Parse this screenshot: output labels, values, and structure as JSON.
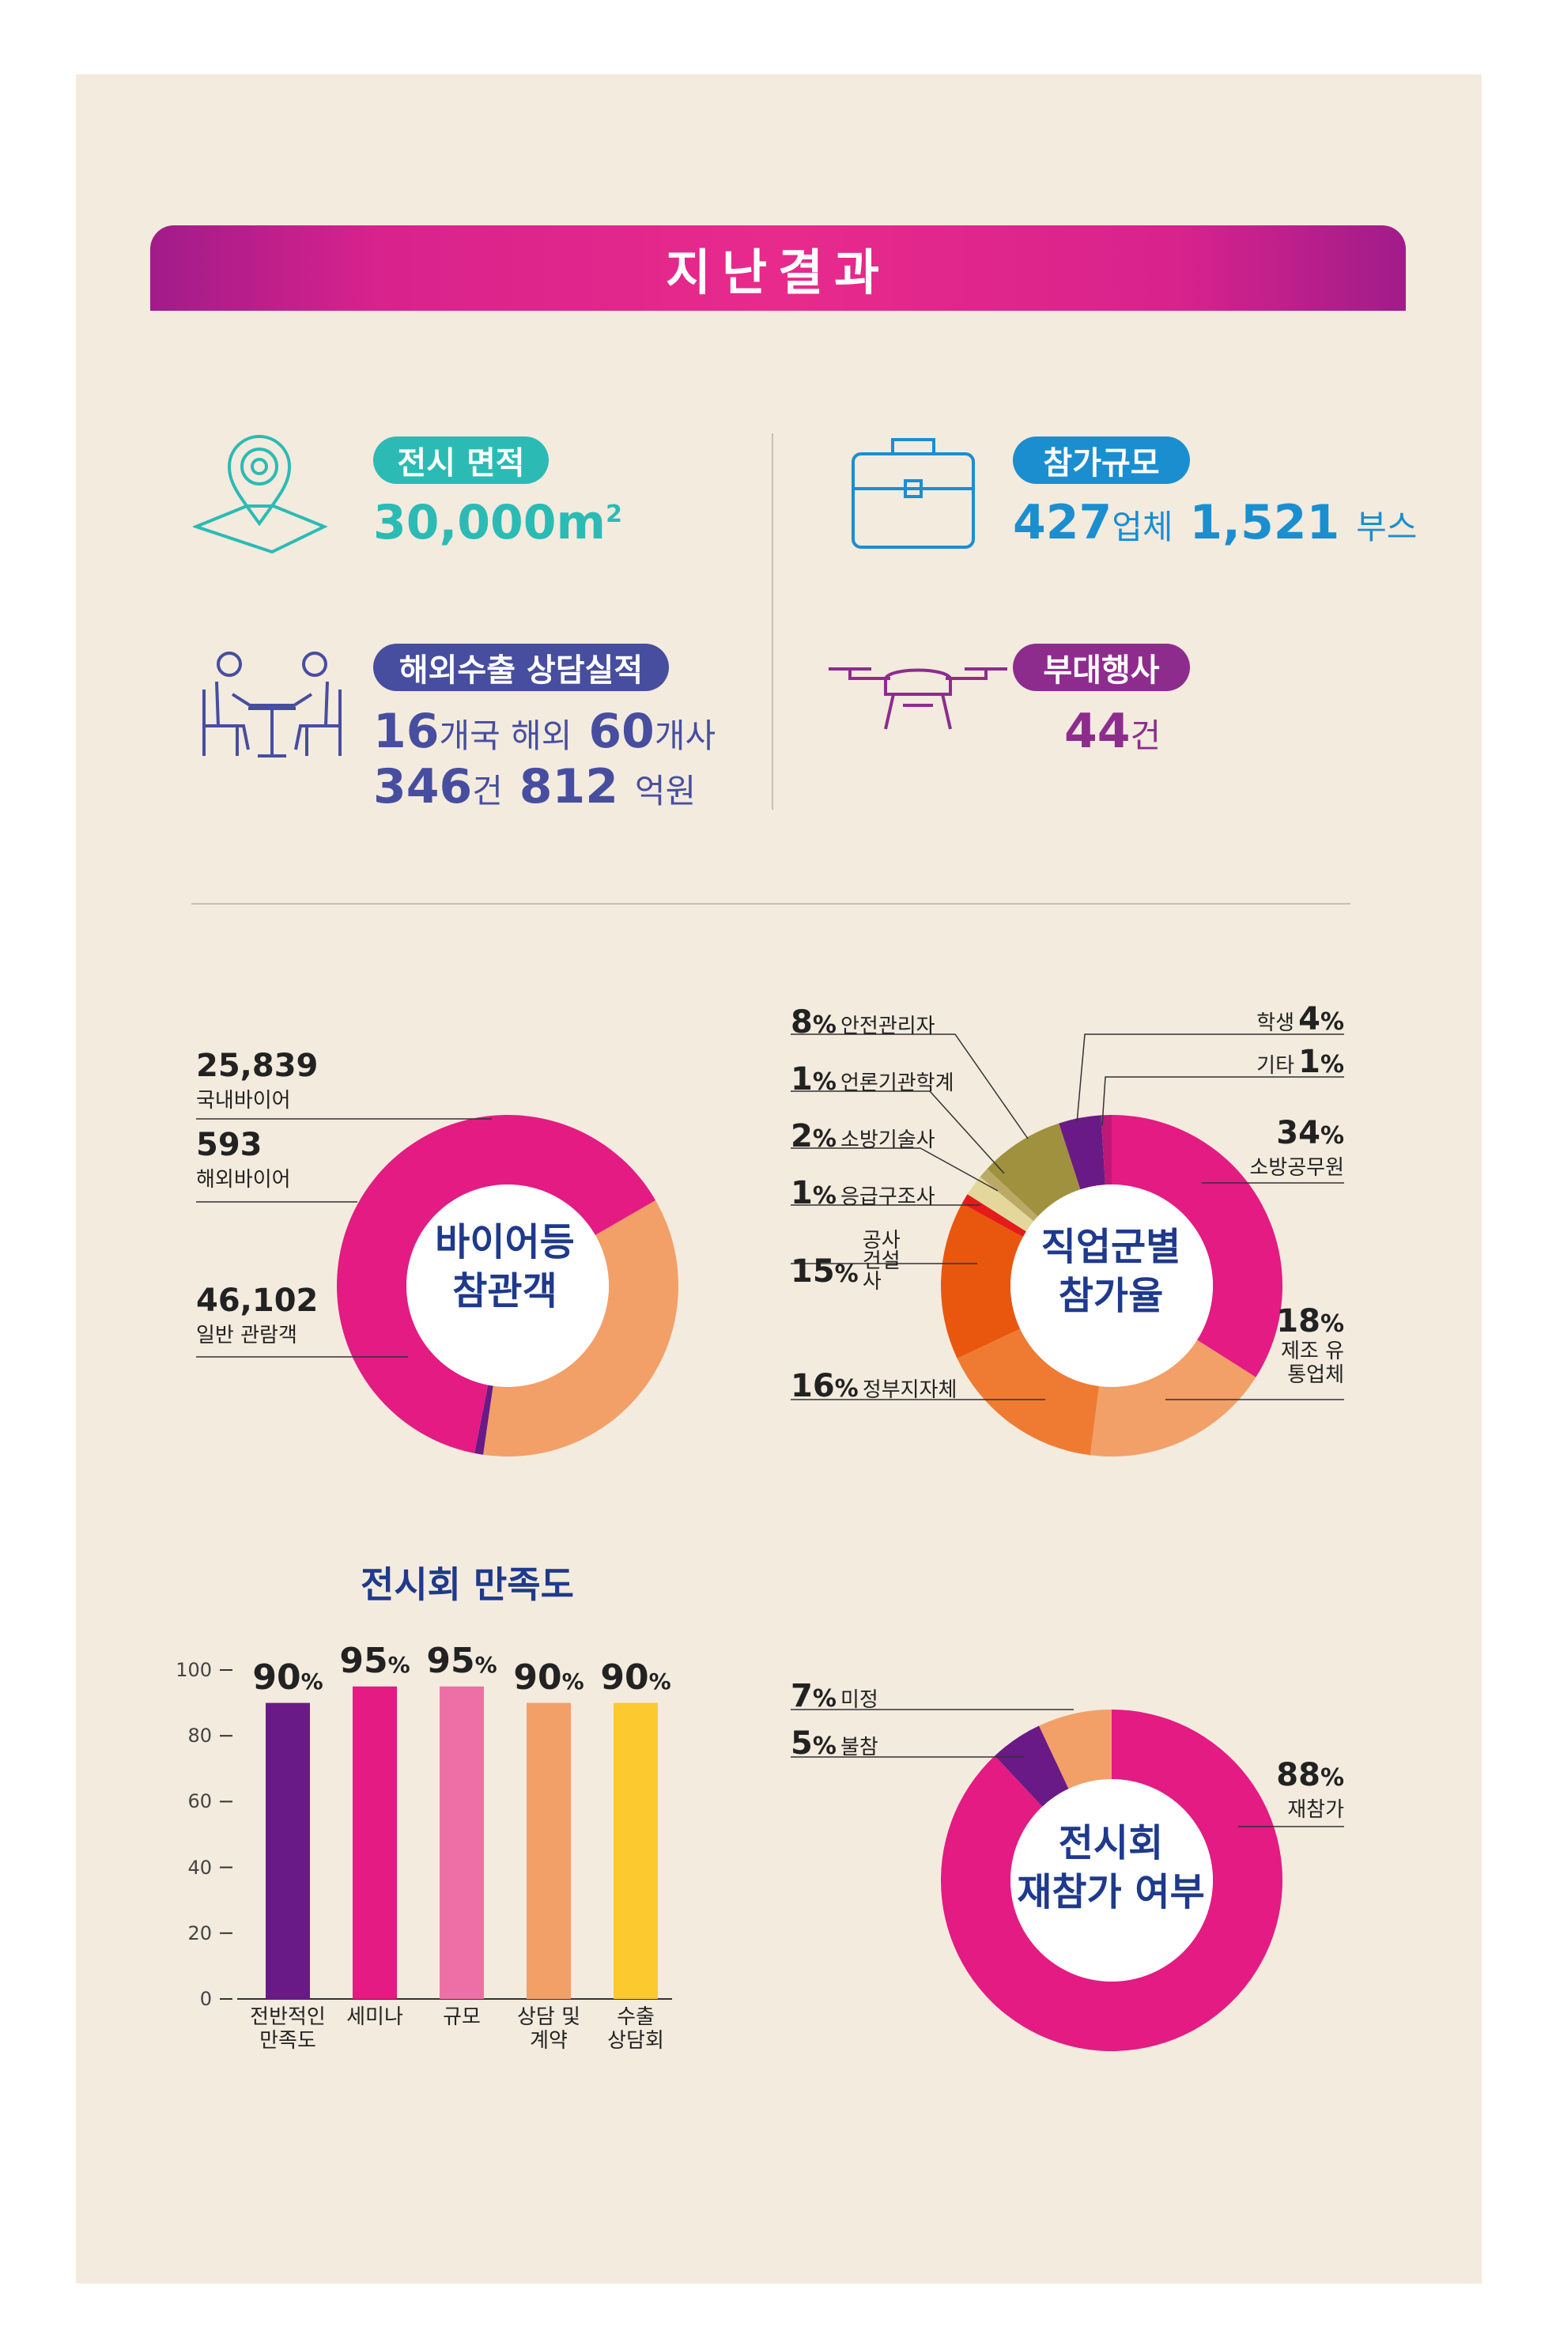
{
  "header": {
    "title": "지난결과"
  },
  "stats": {
    "area": {
      "label": "전시 면적",
      "value": "30,000m",
      "sup": "2"
    },
    "scale": {
      "label": "참가규모",
      "v1": "427",
      "u1": "업체",
      "v2": "1,521",
      "u2": "부스"
    },
    "export": {
      "label": "해외수출 상담실적",
      "v1": "16",
      "u1": "개국 해외",
      "v2": "60",
      "u2": "개사",
      "v3": "346",
      "u3": "건",
      "v4": "812",
      "u4": "억원"
    },
    "events": {
      "label": "부대행사",
      "v1": "44",
      "u1": "건"
    }
  },
  "icons": {
    "area": "location-pin-icon",
    "scale": "briefcase-icon",
    "export": "meeting-icon",
    "events": "drone-icon"
  },
  "colors": {
    "teal": "#2bbbb4",
    "blue": "#1b8ed0",
    "indigo": "#474ea0",
    "purple": "#8e2c8e",
    "pink": "#e31b83",
    "orange": "#f2a068"
  },
  "chart_data": [
    {
      "type": "pie",
      "center_label": [
        "바이어등",
        "참관객"
      ],
      "slices": [
        {
          "value": "25,839",
          "label": "국내바이어",
          "color": "#f2a068",
          "num": 25839
        },
        {
          "value": "593",
          "label": "해외바이어",
          "color": "#6a1a86",
          "num": 593
        },
        {
          "value": "46,102",
          "label": "일반 관람객",
          "color": "#e31b83",
          "num": 46102
        }
      ]
    },
    {
      "type": "pie",
      "center_label": [
        "직업군별",
        "참가율"
      ],
      "slices": [
        {
          "pct": "34",
          "label": "소방공무원",
          "color": "#e31b83",
          "num": 34
        },
        {
          "pct": "18",
          "label": "제조 유통업체",
          "color": "#f2a068",
          "num": 18
        },
        {
          "pct": "16",
          "label": "정부지자체",
          "color": "#ef7b33",
          "num": 16
        },
        {
          "pct": "15",
          "label": "공사 건설사",
          "color": "#e9560e",
          "num": 15
        },
        {
          "pct": "1",
          "label": "응급구조사",
          "color": "#e31b1b",
          "num": 1
        },
        {
          "pct": "2",
          "label": "소방기술사",
          "color": "#e4d79b",
          "num": 2
        },
        {
          "pct": "1",
          "label": "언론기관학계",
          "color": "#b9ab66",
          "num": 1
        },
        {
          "pct": "8",
          "label": "안전관리자",
          "color": "#a0913e",
          "num": 8
        },
        {
          "pct": "4",
          "label": "학생",
          "color": "#6a1a86",
          "num": 4
        },
        {
          "pct": "1",
          "label": "기타",
          "color": "#c01878",
          "num": 1
        }
      ]
    },
    {
      "type": "bar",
      "title": "전시회 만족도",
      "categories": [
        "전반적인 만족도",
        "세미나",
        "규모",
        "상담 및 계약",
        "수출 상담회"
      ],
      "values": [
        90,
        95,
        95,
        90,
        90
      ],
      "colors": [
        "#6a1a86",
        "#e31b83",
        "#ee6fa6",
        "#f2a068",
        "#fcc92e"
      ],
      "yticks": [
        0,
        20,
        40,
        60,
        80,
        100
      ],
      "ylim": [
        0,
        100
      ]
    },
    {
      "type": "pie",
      "center_label": [
        "전시회",
        "재참가 여부"
      ],
      "slices": [
        {
          "pct": "88",
          "label": "재참가",
          "color": "#e31b83",
          "num": 88
        },
        {
          "pct": "5",
          "label": "불참",
          "color": "#6a1a86",
          "num": 5
        },
        {
          "pct": "7",
          "label": "미정",
          "color": "#f2a068",
          "num": 7
        }
      ]
    }
  ],
  "pct_sign": "%"
}
